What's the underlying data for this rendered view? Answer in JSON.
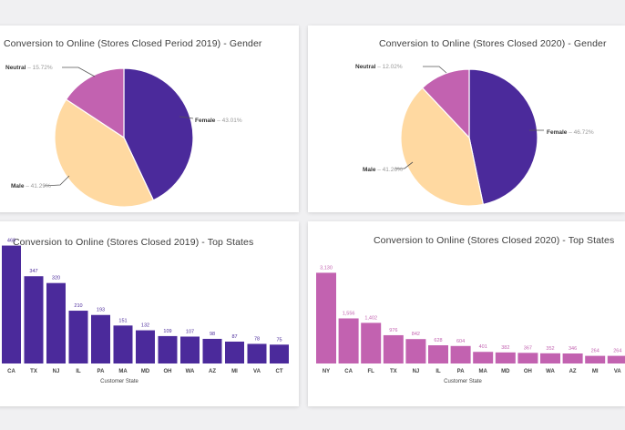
{
  "chart_data": [
    {
      "type": "pie",
      "title": "Conversion to Online (Stores Closed Period 2019) - Gender",
      "slices": [
        {
          "name": "Female",
          "value": 43.01,
          "label": "43.01%",
          "color": "#4b2a9b"
        },
        {
          "name": "Male",
          "value": 41.29,
          "label": "41.29%",
          "color": "#ffd9a1"
        },
        {
          "name": "Neutral",
          "value": 15.72,
          "label": "15.72%",
          "color": "#c262b0"
        }
      ]
    },
    {
      "type": "pie",
      "title": "Conversion to Online (Stores Closed 2020) - Gender",
      "slices": [
        {
          "name": "Female",
          "value": 46.72,
          "label": "46.72%",
          "color": "#4b2a9b"
        },
        {
          "name": "Male",
          "value": 41.26,
          "label": "41.26%",
          "color": "#ffd9a1"
        },
        {
          "name": "Neutral",
          "value": 12.02,
          "label": "12.02%",
          "color": "#c262b0"
        }
      ]
    },
    {
      "type": "bar",
      "title": "Conversion to Online (Stores Closed 2019) - Top States",
      "xlabel": "Customer State",
      "color": "#4b2a9b",
      "ylim": [
        0,
        500
      ],
      "categories": [
        "CA",
        "TX",
        "NJ",
        "IL",
        "PA",
        "MA",
        "MD",
        "OH",
        "WA",
        "AZ",
        "MI",
        "VA",
        "CT"
      ],
      "values": [
        469,
        347,
        320,
        210,
        193,
        151,
        132,
        109,
        107,
        98,
        87,
        78,
        75
      ],
      "value_labels": [
        "469",
        "347",
        "320",
        "210",
        "193",
        "151",
        "132",
        "109",
        "107",
        "98",
        "87",
        "78",
        "75"
      ]
    },
    {
      "type": "bar",
      "title": "Conversion to Online (Stores Closed 2020) - Top States",
      "xlabel": "Customer State",
      "color": "#c262b0",
      "ylim": [
        0,
        3300
      ],
      "categories": [
        "NY",
        "CA",
        "FL",
        "TX",
        "NJ",
        "IL",
        "PA",
        "MA",
        "MD",
        "OH",
        "WA",
        "AZ",
        "MI",
        "VA"
      ],
      "values": [
        3130,
        1556,
        1402,
        976,
        842,
        628,
        604,
        401,
        382,
        367,
        352,
        346,
        264,
        264
      ],
      "value_labels": [
        "3,130",
        "1,556",
        "1,402",
        "976",
        "842",
        "628",
        "604",
        "401",
        "382",
        "367",
        "352",
        "346",
        "264",
        "264"
      ]
    }
  ]
}
